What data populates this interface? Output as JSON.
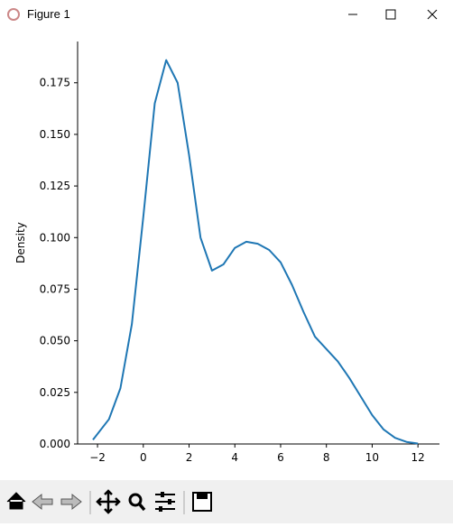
{
  "window": {
    "title": "Figure 1"
  },
  "chart_data": {
    "type": "line",
    "ylabel": "Density",
    "x": [
      -2.2,
      -1.5,
      -1,
      -0.5,
      0,
      0.5,
      1,
      1.5,
      2,
      2.5,
      3,
      3.5,
      4,
      4.5,
      5,
      5.5,
      6,
      6.5,
      7,
      7.5,
      8,
      8.5,
      9,
      9.5,
      10,
      10.5,
      11,
      11.5,
      12
    ],
    "series": [
      {
        "color": "#1f77b4",
        "values": [
          0.002,
          0.012,
          0.027,
          0.058,
          0.11,
          0.165,
          0.186,
          0.175,
          0.14,
          0.1,
          0.084,
          0.087,
          0.095,
          0.098,
          0.097,
          0.094,
          0.088,
          0.077,
          0.064,
          0.052,
          0.046,
          0.04,
          0.032,
          0.023,
          0.014,
          0.007,
          0.003,
          0.001,
          0.0002
        ]
      }
    ],
    "xlim": [
      -2.87,
      12.94
    ],
    "ylim": [
      0,
      0.195
    ],
    "xticks": [
      {
        "value": -2,
        "label": "−2"
      },
      0,
      2,
      4,
      6,
      8,
      10,
      12
    ],
    "yticks": [
      {
        "value": 0,
        "label": "0.000"
      },
      0.025,
      {
        "value": 0.05,
        "label": "0.050"
      },
      0.075,
      {
        "value": 0.1,
        "label": "0.100"
      },
      0.125,
      {
        "value": 0.15,
        "label": "0.150"
      },
      0.175
    ]
  }
}
